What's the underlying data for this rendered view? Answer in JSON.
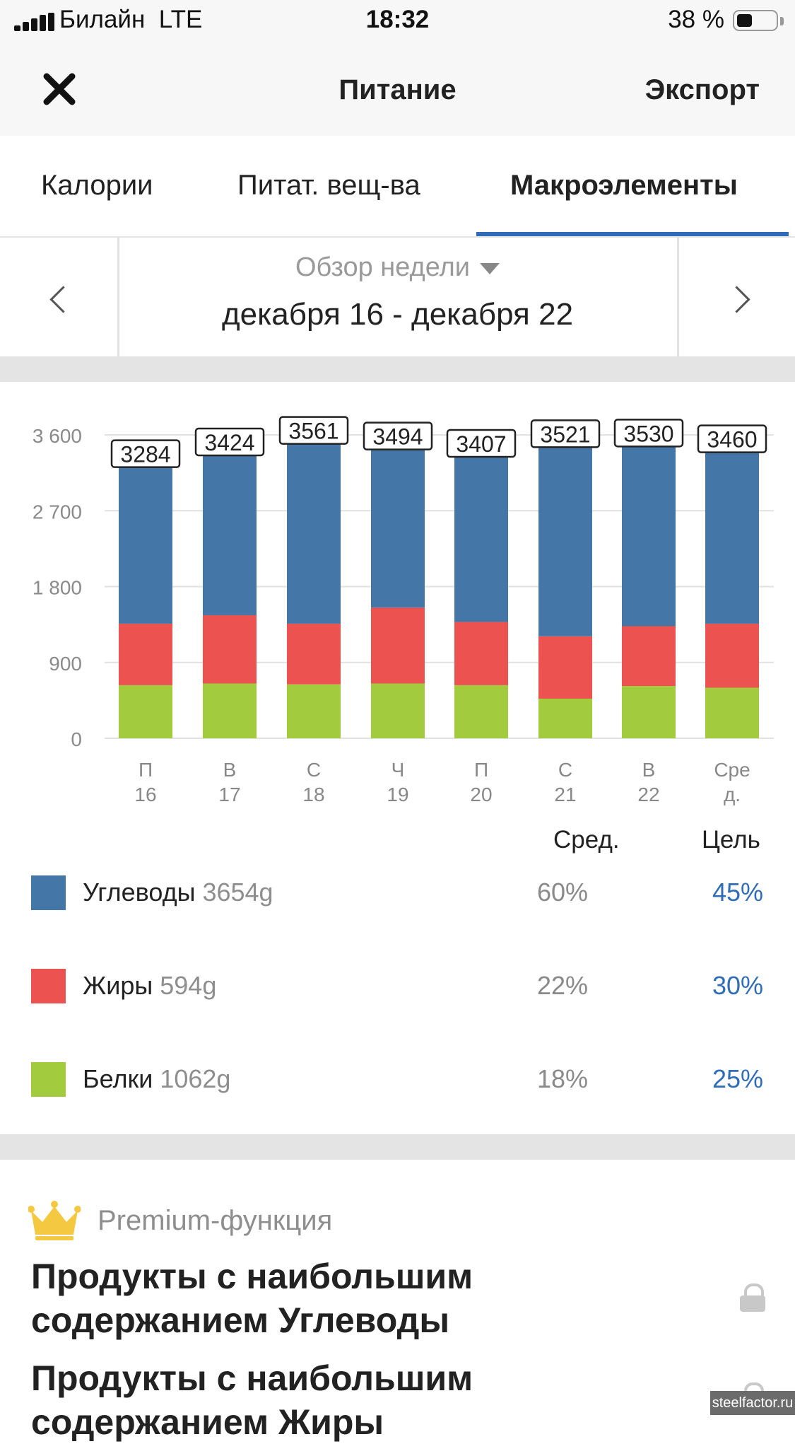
{
  "status_bar": {
    "carrier": "Билайн",
    "network": "LTE",
    "time": "18:32",
    "battery": "38 %",
    "battery_level": 0.38
  },
  "nav": {
    "title": "Питание",
    "export_label": "Экспорт",
    "close_icon": "close-icon"
  },
  "tabs": [
    {
      "label": "Калории",
      "active": false
    },
    {
      "label": "Питат. вещ-ва",
      "active": false
    },
    {
      "label": "Макроэлементы",
      "active": true
    }
  ],
  "week": {
    "mode_label": "Обзор недели",
    "range": "декабря 16 - декабря 22"
  },
  "colors": {
    "carbs": "#4476a7",
    "fat": "#ec5350",
    "protein": "#a3cb3e",
    "accent": "#2f6db8"
  },
  "chart_data": {
    "type": "bar",
    "stacked": true,
    "categories": [
      [
        "П",
        "16"
      ],
      [
        "В",
        "17"
      ],
      [
        "С",
        "18"
      ],
      [
        "Ч",
        "19"
      ],
      [
        "П",
        "20"
      ],
      [
        "С",
        "21"
      ],
      [
        "В",
        "22"
      ],
      [
        "Сре",
        "д."
      ]
    ],
    "y_ticks": [
      "3 600",
      "2 700",
      "1 800",
      "900",
      "0"
    ],
    "ylim": [
      0,
      3600
    ],
    "grid": true,
    "totals": [
      3284,
      3424,
      3561,
      3494,
      3407,
      3521,
      3530,
      3460
    ],
    "series": [
      {
        "key": "protein",
        "values": [
          630,
          650,
          640,
          650,
          630,
          470,
          620,
          600
        ]
      },
      {
        "key": "fat",
        "values": [
          730,
          810,
          720,
          900,
          750,
          740,
          710,
          760
        ]
      },
      {
        "key": "carbs",
        "values": [
          1924,
          1964,
          2201,
          1944,
          2027,
          2311,
          2200,
          2100
        ]
      }
    ]
  },
  "legend": {
    "avg_header": "Сред.",
    "goal_header": "Цель",
    "items": [
      {
        "name": "Углеводы",
        "grams": "3654g",
        "avg": "60%",
        "goal": "45%"
      },
      {
        "name": "Жиры",
        "grams": "594g",
        "avg": "22%",
        "goal": "30%"
      },
      {
        "name": "Белки",
        "grams": "1062g",
        "avg": "18%",
        "goal": "25%"
      }
    ]
  },
  "premium": {
    "label": "Premium-функция",
    "items": [
      "Продукты с наибольшим содержанием Углеводы",
      "Продукты с наибольшим содержанием Жиры"
    ]
  },
  "watermark": "steelfactor.ru"
}
